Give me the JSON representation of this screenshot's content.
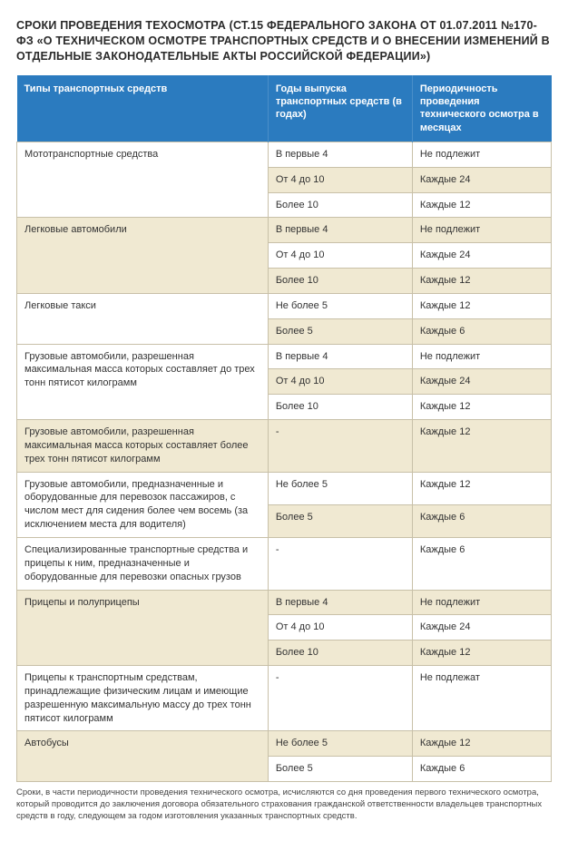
{
  "title": "СРОКИ ПРОВЕДЕНИЯ ТЕХОСМОТРА (СТ.15 ФЕДЕРАЛЬНОГО ЗАКОНА ОТ 01.07.2011 №170-ФЗ «О ТЕХНИЧЕСКОМ ОСМОТРЕ ТРАНСПОРТНЫХ СРЕДСТВ И О ВНЕСЕНИИ ИЗМЕНЕНИЙ В ОТДЕЛЬНЫЕ ЗАКОНОДАТЕЛЬНЫЕ АКТЫ РОССИЙСКОЙ ФЕДЕРАЦИИ»)",
  "columns": [
    "Типы транспортных средств",
    "Годы выпуска транспортных средств (в годах)",
    "Периодичность проведения технического осмотра в месяцах"
  ],
  "rows": [
    {
      "alt": false,
      "span": 3,
      "c0": "Мототранспортные средства",
      "c1": "В первые 4",
      "c2": "Не подлежит"
    },
    {
      "alt": true,
      "c1": "От 4 до 10",
      "c2": "Каждые 24"
    },
    {
      "alt": false,
      "c1": "Более 10",
      "c2": "Каждые 12"
    },
    {
      "alt": true,
      "span": 3,
      "c0": "Легковые автомобили",
      "c1": "В первые 4",
      "c2": "Не подлежит"
    },
    {
      "alt": false,
      "c1": "От 4 до 10",
      "c2": "Каждые 24"
    },
    {
      "alt": true,
      "c1": "Более 10",
      "c2": "Каждые 12"
    },
    {
      "alt": false,
      "span": 2,
      "c0": "Легковые такси",
      "c1": "Не более 5",
      "c2": "Каждые 12"
    },
    {
      "alt": true,
      "c1": "Более 5",
      "c2": "Каждые 6"
    },
    {
      "alt": false,
      "span": 3,
      "c0": "Грузовые автомобили, разрешенная максимальная масса которых составляет до трех тонн пятисот килограмм",
      "c1": "В первые 4",
      "c2": "Не подлежит"
    },
    {
      "alt": true,
      "c1": "От 4 до 10",
      "c2": "Каждые 24"
    },
    {
      "alt": false,
      "c1": "Более 10",
      "c2": "Каждые 12"
    },
    {
      "alt": true,
      "span": 1,
      "c0": "Грузовые автомобили, разрешенная максимальная масса которых составляет более трех тонн пятисот килограмм",
      "c1": "-",
      "c2": "Каждые 12"
    },
    {
      "alt": false,
      "span": 2,
      "c0": "Грузовые автомобили, предназначенные и оборудованные для перевозок пассажиров, с числом мест для сидения более чем восемь (за исключением места для водителя)",
      "c1": "Не более 5",
      "c2": "Каждые 12"
    },
    {
      "alt": true,
      "c1": "Более 5",
      "c2": "Каждые 6"
    },
    {
      "alt": false,
      "span": 1,
      "c0": "Специализированные транспортные средства и прицепы к ним, предназначенные и оборудованные для перевозки опасных грузов",
      "c1": "-",
      "c2": "Каждые 6"
    },
    {
      "alt": true,
      "span": 3,
      "c0": "Прицепы и полуприцепы",
      "c1": "В первые 4",
      "c2": "Не подлежит"
    },
    {
      "alt": false,
      "c1": "От 4 до 10",
      "c2": "Каждые 24"
    },
    {
      "alt": true,
      "c1": "Более 10",
      "c2": "Каждые 12"
    },
    {
      "alt": false,
      "span": 1,
      "c0": "Прицепы к транспортным средствам, принадлежащие физическим лицам и имеющие разрешенную максимальную массу до трех тонн пятисот килограмм",
      "c1": "-",
      "c2": "Не подлежат"
    },
    {
      "alt": true,
      "span": 2,
      "c0": "Автобусы",
      "c1": "Не более 5",
      "c2": "Каждые 12"
    },
    {
      "alt": false,
      "c1": "Более 5",
      "c2": "Каждые 6"
    }
  ],
  "footnote": "Сроки, в части периодичности проведения технического осмотра, исчисляются со дня проведения первого технического осмотра, который проводится до заключения договора обязательного страхования гражданской ответственности владельцев транспортных средств в году, следующем за годом изготовления указанных транспортных средств.",
  "colors": {
    "header_bg": "#2b7bbf",
    "header_text": "#ffffff",
    "alt_row_bg": "#f0e9d2",
    "norm_row_bg": "#ffffff",
    "border": "#c8c0a8",
    "text": "#2a2a2a"
  }
}
